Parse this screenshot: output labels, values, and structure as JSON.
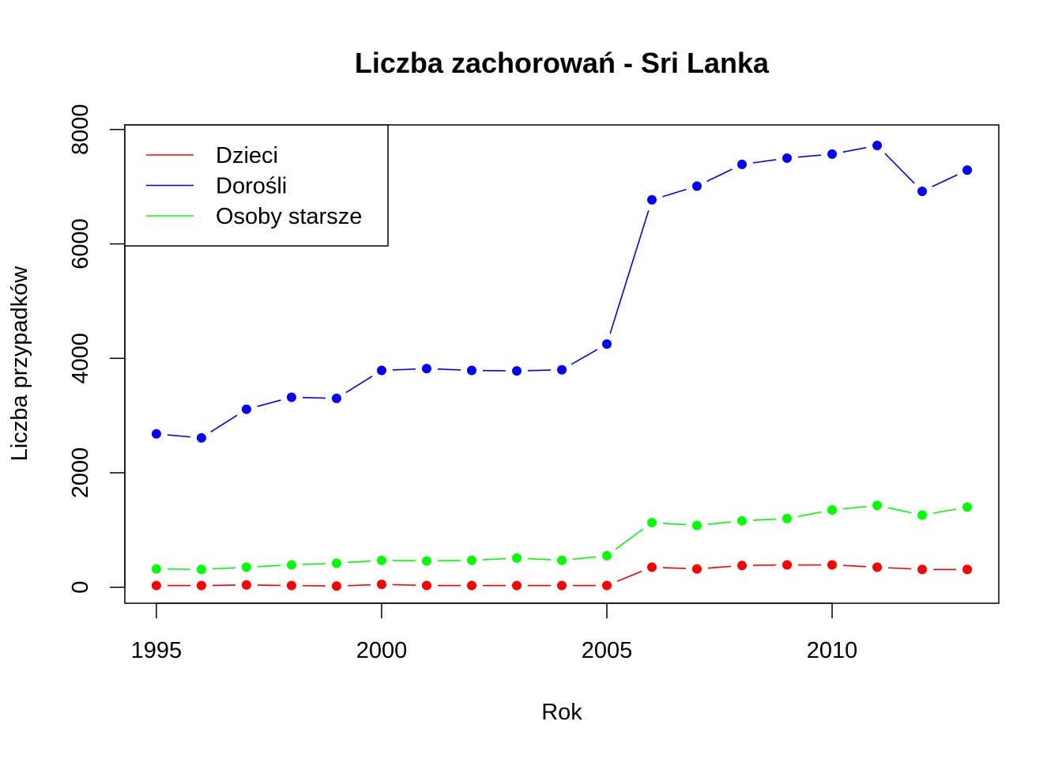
{
  "chart_data": {
    "type": "line",
    "title": "Liczba zachorowań -  Sri Lanka",
    "xlabel": "Rok",
    "ylabel": "Liczba przypadków",
    "xlim": [
      1994.3,
      2013.7
    ],
    "ylim": [
      -280,
      8080
    ],
    "x_ticks": [
      1995,
      2000,
      2005,
      2010
    ],
    "y_ticks": [
      0,
      2000,
      4000,
      6000,
      8000
    ],
    "grid": false,
    "legend_position": "top-left",
    "x": [
      1995,
      1996,
      1997,
      1998,
      1999,
      2000,
      2001,
      2002,
      2003,
      2004,
      2005,
      2006,
      2007,
      2008,
      2009,
      2010,
      2011,
      2012,
      2013
    ],
    "series": [
      {
        "name": "Dzieci",
        "color": "#ff0000",
        "values": [
          30,
          30,
          40,
          30,
          20,
          50,
          30,
          30,
          30,
          30,
          30,
          350,
          320,
          380,
          390,
          390,
          350,
          310,
          310
        ]
      },
      {
        "name": "Dorośli",
        "color": "#0000ff",
        "values": [
          2680,
          2610,
          3110,
          3320,
          3300,
          3790,
          3820,
          3790,
          3780,
          3800,
          4250,
          6770,
          7010,
          7390,
          7500,
          7570,
          7720,
          6920,
          7290
        ]
      },
      {
        "name": "Osoby starsze",
        "color": "#00ff00",
        "values": [
          320,
          310,
          350,
          390,
          420,
          470,
          460,
          470,
          510,
          470,
          550,
          1130,
          1080,
          1160,
          1200,
          1350,
          1430,
          1260,
          1400
        ]
      }
    ]
  }
}
